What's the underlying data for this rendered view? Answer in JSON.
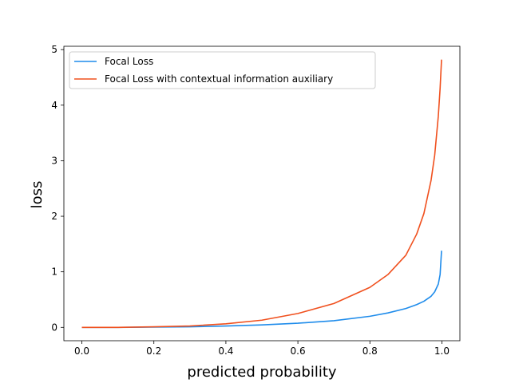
{
  "chart_data": {
    "type": "line",
    "xlabel": "predicted probability",
    "ylabel": "loss",
    "xlim": [
      -0.05,
      1.05
    ],
    "ylim": [
      -0.24,
      5.06
    ],
    "xticks": [
      0.0,
      0.2,
      0.4,
      0.6,
      0.8,
      1.0
    ],
    "xtick_labels": [
      "0.0",
      "0.2",
      "0.4",
      "0.6",
      "0.8",
      "1.0"
    ],
    "yticks": [
      0,
      1,
      2,
      3,
      4,
      5
    ],
    "ytick_labels": [
      "0",
      "1",
      "2",
      "3",
      "4",
      "5"
    ],
    "grid": false,
    "legend_position": "upper-left",
    "series": [
      {
        "name": "Focal Loss",
        "color": "#1f8ceb",
        "x": [
          0.0,
          0.1,
          0.2,
          0.3,
          0.4,
          0.5,
          0.6,
          0.7,
          0.8,
          0.85,
          0.9,
          0.93,
          0.95,
          0.97,
          0.98,
          0.99,
          0.995,
          0.999
        ],
        "y": [
          0.0,
          0.0,
          0.005,
          0.01,
          0.025,
          0.045,
          0.075,
          0.12,
          0.2,
          0.26,
          0.34,
          0.41,
          0.47,
          0.56,
          0.64,
          0.78,
          0.95,
          1.38
        ]
      },
      {
        "name": "Focal Loss with contextual information auxiliary",
        "color": "#f0501e",
        "x": [
          0.0,
          0.1,
          0.2,
          0.3,
          0.4,
          0.5,
          0.6,
          0.7,
          0.8,
          0.85,
          0.9,
          0.93,
          0.95,
          0.97,
          0.98,
          0.99,
          0.995,
          0.999
        ],
        "y": [
          0.0,
          0.0,
          0.01,
          0.025,
          0.065,
          0.13,
          0.25,
          0.43,
          0.72,
          0.95,
          1.3,
          1.68,
          2.05,
          2.65,
          3.1,
          3.8,
          4.3,
          4.82
        ]
      }
    ]
  }
}
